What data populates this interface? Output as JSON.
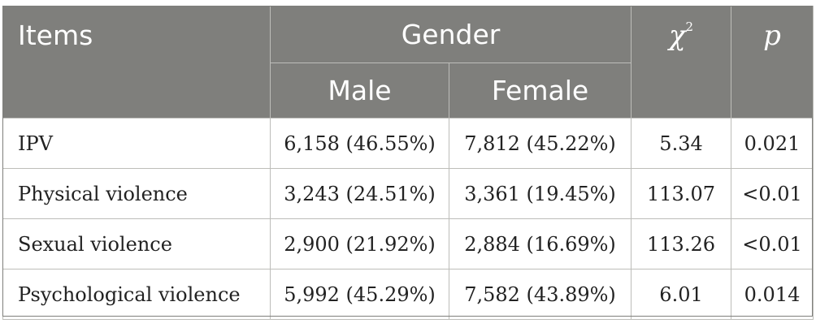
{
  "header": {
    "items": "Items",
    "gender": "Gender",
    "chi_symbol": "χ",
    "chi_sup": "2",
    "p": "p",
    "male": "Male",
    "female": "Female"
  },
  "rows": [
    {
      "item": "IPV",
      "male": "6,158 (46.55%)",
      "female": "7,812 (45.22%)",
      "chi2": "5.34",
      "p": "0.021"
    },
    {
      "item": "Physical violence",
      "male": "3,243 (24.51%)",
      "female": "3,361 (19.45%)",
      "chi2": "113.07",
      "p": "<0.01"
    },
    {
      "item": "Sexual violence",
      "male": "2,900 (21.92%)",
      "female": "2,884 (16.69%)",
      "chi2": "113.26",
      "p": "<0.01"
    },
    {
      "item": "Psychological violence",
      "male": "5,992 (45.29%)",
      "female": "7,582 (43.89%)",
      "chi2": "6.01",
      "p": "0.014"
    }
  ],
  "colors": {
    "header_bg": "#7f7f7c",
    "header_text": "#ffffff",
    "border": "#bdbdb9",
    "body_text": "#222222"
  }
}
